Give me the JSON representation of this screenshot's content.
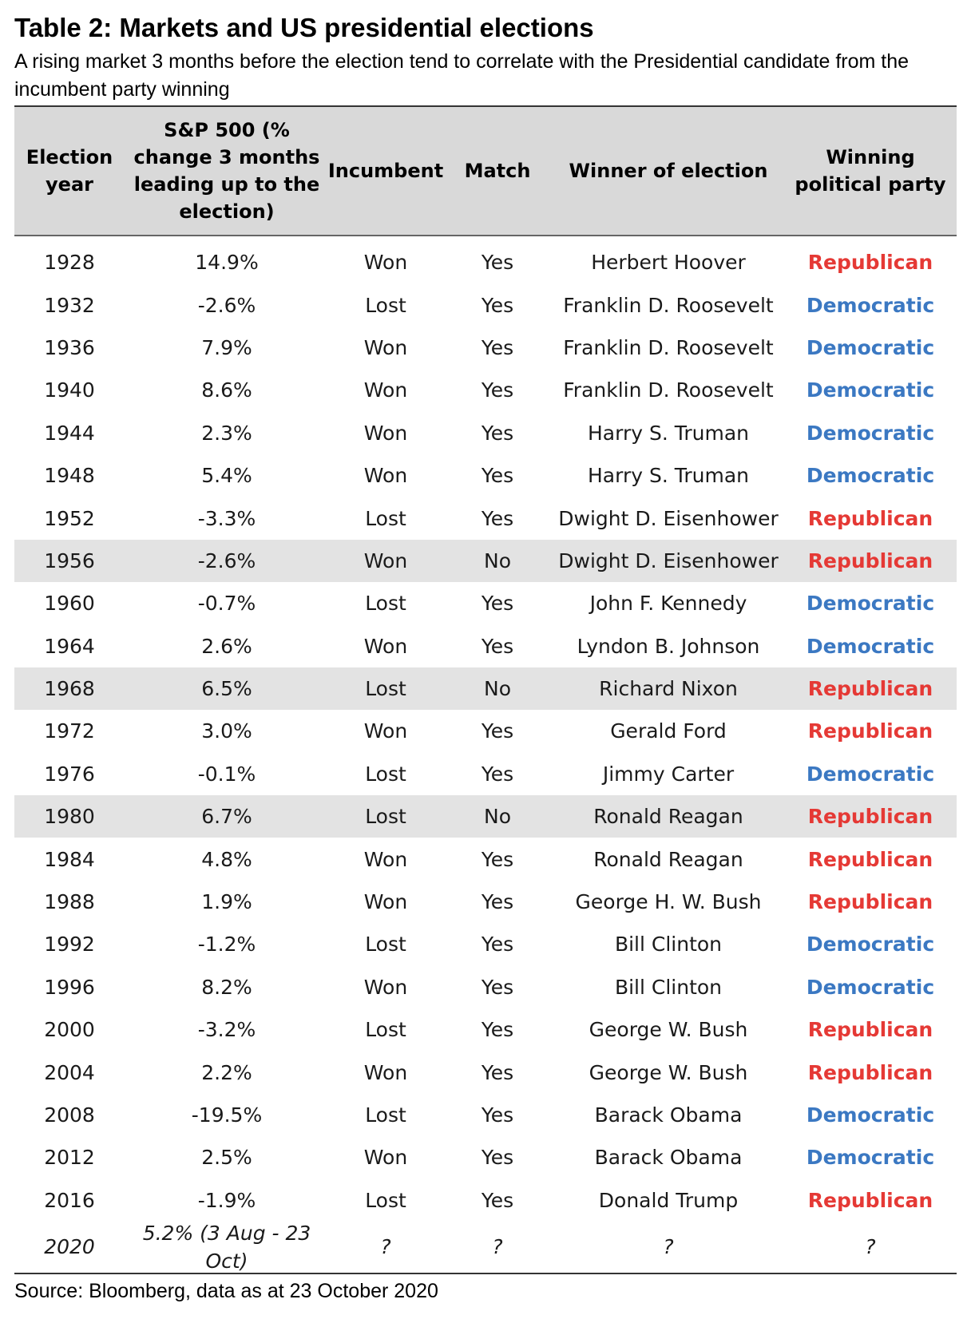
{
  "title": "Table 2: Markets and US presidential elections",
  "subtitle": "A rising market 3 months before the election tend to correlate with the Presidential candidate from the incumbent party winning",
  "headers": {
    "year": "Election year",
    "sp": "S&P 500 (% change 3 months leading up to the election)",
    "incumbent": "Incumbent",
    "match": "Match",
    "winner": "Winner of election",
    "party": "Winning political party"
  },
  "colors": {
    "republican": "#e53935",
    "democratic": "#3b78c2",
    "highlight_row": "#e3e3e3",
    "header_bg": "#d9d9d9"
  },
  "rows": [
    {
      "year": "1928",
      "sp": "14.9%",
      "incumbent": "Won",
      "match": "Yes",
      "winner": "Herbert Hoover",
      "party": "Republican"
    },
    {
      "year": "1932",
      "sp": "-2.6%",
      "incumbent": "Lost",
      "match": "Yes",
      "winner": "Franklin D. Roosevelt",
      "party": "Democratic"
    },
    {
      "year": "1936",
      "sp": "7.9%",
      "incumbent": "Won",
      "match": "Yes",
      "winner": "Franklin D. Roosevelt",
      "party": "Democratic"
    },
    {
      "year": "1940",
      "sp": "8.6%",
      "incumbent": "Won",
      "match": "Yes",
      "winner": "Franklin D. Roosevelt",
      "party": "Democratic"
    },
    {
      "year": "1944",
      "sp": "2.3%",
      "incumbent": "Won",
      "match": "Yes",
      "winner": "Harry S. Truman",
      "party": "Democratic"
    },
    {
      "year": "1948",
      "sp": "5.4%",
      "incumbent": "Won",
      "match": "Yes",
      "winner": "Harry S. Truman",
      "party": "Democratic"
    },
    {
      "year": "1952",
      "sp": "-3.3%",
      "incumbent": "Lost",
      "match": "Yes",
      "winner": "Dwight D. Eisenhower",
      "party": "Republican"
    },
    {
      "year": "1956",
      "sp": "-2.6%",
      "incumbent": "Won",
      "match": "No",
      "winner": "Dwight D. Eisenhower",
      "party": "Republican"
    },
    {
      "year": "1960",
      "sp": "-0.7%",
      "incumbent": "Lost",
      "match": "Yes",
      "winner": "John F. Kennedy",
      "party": "Democratic"
    },
    {
      "year": "1964",
      "sp": "2.6%",
      "incumbent": "Won",
      "match": "Yes",
      "winner": "Lyndon B. Johnson",
      "party": "Democratic"
    },
    {
      "year": "1968",
      "sp": "6.5%",
      "incumbent": "Lost",
      "match": "No",
      "winner": "Richard Nixon",
      "party": "Republican"
    },
    {
      "year": "1972",
      "sp": "3.0%",
      "incumbent": "Won",
      "match": "Yes",
      "winner": "Gerald Ford",
      "party": "Republican"
    },
    {
      "year": "1976",
      "sp": "-0.1%",
      "incumbent": "Lost",
      "match": "Yes",
      "winner": "Jimmy Carter",
      "party": "Democratic"
    },
    {
      "year": "1980",
      "sp": "6.7%",
      "incumbent": "Lost",
      "match": "No",
      "winner": "Ronald Reagan",
      "party": "Republican"
    },
    {
      "year": "1984",
      "sp": "4.8%",
      "incumbent": "Won",
      "match": "Yes",
      "winner": "Ronald Reagan",
      "party": "Republican"
    },
    {
      "year": "1988",
      "sp": "1.9%",
      "incumbent": "Won",
      "match": "Yes",
      "winner": "George H. W. Bush",
      "party": "Republican"
    },
    {
      "year": "1992",
      "sp": "-1.2%",
      "incumbent": "Lost",
      "match": "Yes",
      "winner": "Bill Clinton",
      "party": "Democratic"
    },
    {
      "year": "1996",
      "sp": "8.2%",
      "incumbent": "Won",
      "match": "Yes",
      "winner": "Bill Clinton",
      "party": "Democratic"
    },
    {
      "year": "2000",
      "sp": "-3.2%",
      "incumbent": "Lost",
      "match": "Yes",
      "winner": "George W. Bush",
      "party": "Republican"
    },
    {
      "year": "2004",
      "sp": "2.2%",
      "incumbent": "Won",
      "match": "Yes",
      "winner": "George W. Bush",
      "party": "Republican"
    },
    {
      "year": "2008",
      "sp": "-19.5%",
      "incumbent": "Lost",
      "match": "Yes",
      "winner": "Barack Obama",
      "party": "Democratic"
    },
    {
      "year": "2012",
      "sp": "2.5%",
      "incumbent": "Won",
      "match": "Yes",
      "winner": "Barack Obama",
      "party": "Democratic"
    },
    {
      "year": "2016",
      "sp": "-1.9%",
      "incumbent": "Lost",
      "match": "Yes",
      "winner": "Donald Trump",
      "party": "Republican"
    }
  ],
  "last_row": {
    "year": "2020",
    "sp": "5.2% (3 Aug - 23 Oct)",
    "incumbent": "?",
    "match": "?",
    "winner": "?",
    "party": "?"
  },
  "source": "Source: Bloomberg, data as at 23 October 2020"
}
